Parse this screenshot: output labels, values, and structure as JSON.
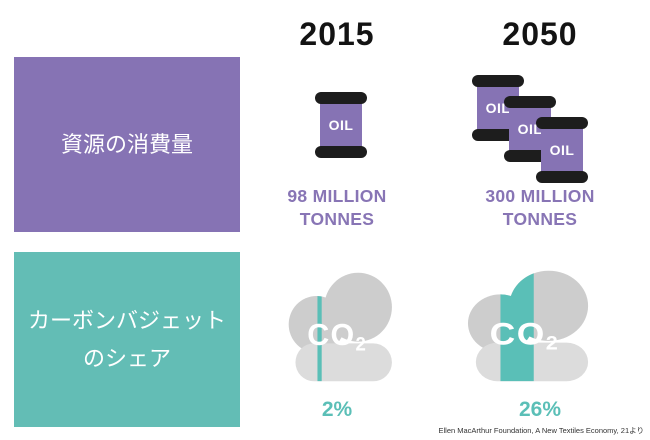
{
  "title_years": {
    "y2015": "2015",
    "y2050": "2050"
  },
  "rows": {
    "resources": {
      "label": "資源の消費量",
      "value_2015": "98 MILLION\nTONNES",
      "value_2050": "300 MILLION\nTONNES",
      "barrels_2015": 1,
      "barrels_2050": 3
    },
    "carbon": {
      "label": "カーボンバジェット\nのシェア",
      "value_2015": "2%",
      "value_2050": "26%",
      "share_2015_percent": 2,
      "share_2050_percent": 26
    }
  },
  "icons": {
    "oil_barrel_label": "OIL",
    "co2_label": "CO",
    "co2_subscript": "2"
  },
  "footer": {
    "source": "Ellen MacArthur Foundation, A New Textiles Economy, 21より"
  },
  "colors": {
    "purple": "#8673b4",
    "teal": "#63bdb5",
    "stripe_teal": "#5abfb7",
    "value_text_purple": "#8875b5",
    "pct_text_teal": "#5bbfb7",
    "cloud_gray": "#cdcdcd",
    "cloud_base_gray": "#dcdcdc",
    "barrel_cap_black": "#1d1d1d",
    "heading_black": "#131313"
  },
  "chart_data": {
    "type": "table",
    "categories": [
      "2015",
      "2050"
    ],
    "series": [
      {
        "name": "資源の消費量 (million tonnes)",
        "values": [
          98,
          300
        ]
      },
      {
        "name": "カーボンバジェットのシェア (%)",
        "values": [
          2,
          26
        ]
      }
    ],
    "title": "",
    "source": "Ellen MacArthur Foundation, A New Textiles Economy, 21より"
  }
}
